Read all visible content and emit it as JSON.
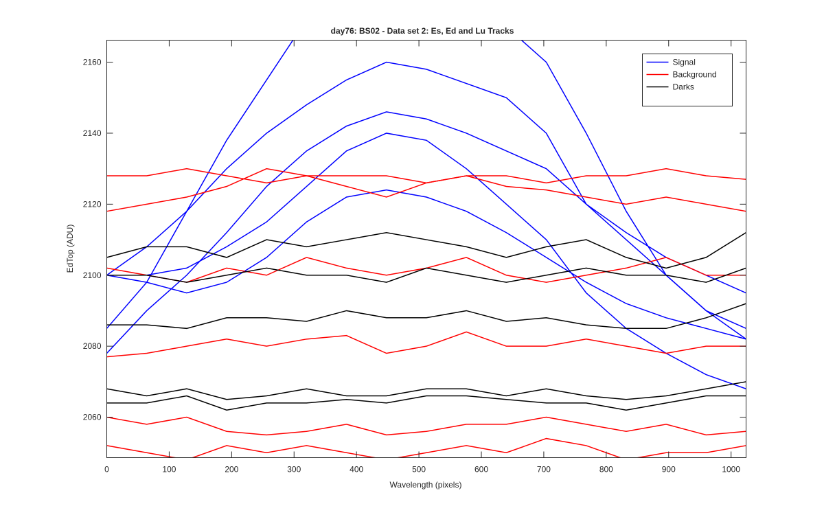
{
  "chart_data": {
    "type": "line",
    "title": "day76: BS02 - Data set 2: Es, Ed and Lu Tracks",
    "xlabel": "Wavelength (pixels)",
    "ylabel": "EdTop (ADU)",
    "x": [
      0,
      64,
      128,
      192,
      256,
      320,
      384,
      448,
      512,
      576,
      640,
      704,
      768,
      832,
      896,
      960,
      1024
    ],
    "xlim": [
      0,
      1024
    ],
    "ylim": [
      2048.6,
      2166.2
    ],
    "xticks": [
      0,
      100,
      200,
      300,
      400,
      500,
      600,
      700,
      800,
      900,
      1000
    ],
    "yticks": [
      2060,
      2080,
      2100,
      2120,
      2140,
      2160
    ],
    "legend": "upper right",
    "grid": false,
    "series": [
      {
        "name": "Signal",
        "color": "#0000ff",
        "lines": [
          [
            2085,
            2098,
            2118,
            2138,
            2155,
            2172,
            2185,
            2190,
            2188,
            2180,
            2170,
            2160,
            2140,
            2118,
            2100,
            2090,
            2082
          ],
          [
            2100,
            2108,
            2118,
            2130,
            2140,
            2148,
            2155,
            2160,
            2158,
            2154,
            2150,
            2140,
            2120,
            2112,
            2105,
            2100,
            2095
          ],
          [
            2078,
            2090,
            2100,
            2112,
            2125,
            2135,
            2142,
            2146,
            2144,
            2140,
            2135,
            2130,
            2120,
            2110,
            2100,
            2090,
            2085
          ],
          [
            2100,
            2100,
            2102,
            2108,
            2115,
            2125,
            2135,
            2140,
            2138,
            2130,
            2120,
            2110,
            2095,
            2085,
            2078,
            2072,
            2068
          ],
          [
            2100,
            2098,
            2095,
            2098,
            2105,
            2115,
            2122,
            2124,
            2122,
            2118,
            2112,
            2105,
            2098,
            2092,
            2088,
            2085,
            2082
          ]
        ]
      },
      {
        "name": "Background",
        "color": "#ff0000",
        "lines": [
          [
            2128,
            2128,
            2130,
            2128,
            2126,
            2128,
            2128,
            2128,
            2126,
            2128,
            2128,
            2126,
            2128,
            2128,
            2130,
            2128,
            2127
          ],
          [
            2118,
            2120,
            2122,
            2125,
            2130,
            2128,
            2125,
            2122,
            2126,
            2128,
            2125,
            2124,
            2122,
            2120,
            2122,
            2120,
            2118
          ],
          [
            2102,
            2100,
            2098,
            2102,
            2100,
            2105,
            2102,
            2100,
            2102,
            2105,
            2100,
            2098,
            2100,
            2102,
            2105,
            2100,
            2100
          ],
          [
            2077,
            2078,
            2080,
            2082,
            2080,
            2082,
            2083,
            2078,
            2080,
            2084,
            2080,
            2080,
            2082,
            2080,
            2078,
            2080,
            2080
          ],
          [
            2060,
            2058,
            2060,
            2056,
            2055,
            2056,
            2058,
            2055,
            2056,
            2058,
            2058,
            2060,
            2058,
            2056,
            2058,
            2055,
            2056
          ],
          [
            2052,
            2050,
            2048,
            2052,
            2050,
            2052,
            2050,
            2048,
            2050,
            2052,
            2050,
            2054,
            2052,
            2048,
            2050,
            2050,
            2052
          ]
        ]
      },
      {
        "name": "Darks",
        "color": "#000000",
        "lines": [
          [
            2105,
            2108,
            2108,
            2105,
            2110,
            2108,
            2110,
            2112,
            2110,
            2108,
            2105,
            2108,
            2110,
            2105,
            2102,
            2105,
            2112
          ],
          [
            2100,
            2100,
            2098,
            2100,
            2102,
            2100,
            2100,
            2098,
            2102,
            2100,
            2098,
            2100,
            2102,
            2100,
            2100,
            2098,
            2102
          ],
          [
            2086,
            2086,
            2085,
            2088,
            2088,
            2087,
            2090,
            2088,
            2088,
            2090,
            2087,
            2088,
            2086,
            2085,
            2085,
            2088,
            2092
          ],
          [
            2068,
            2066,
            2068,
            2065,
            2066,
            2068,
            2066,
            2066,
            2068,
            2068,
            2066,
            2068,
            2066,
            2065,
            2066,
            2068,
            2070
          ],
          [
            2064,
            2064,
            2066,
            2062,
            2064,
            2064,
            2065,
            2064,
            2066,
            2066,
            2065,
            2064,
            2064,
            2062,
            2064,
            2066,
            2066
          ]
        ]
      }
    ]
  }
}
